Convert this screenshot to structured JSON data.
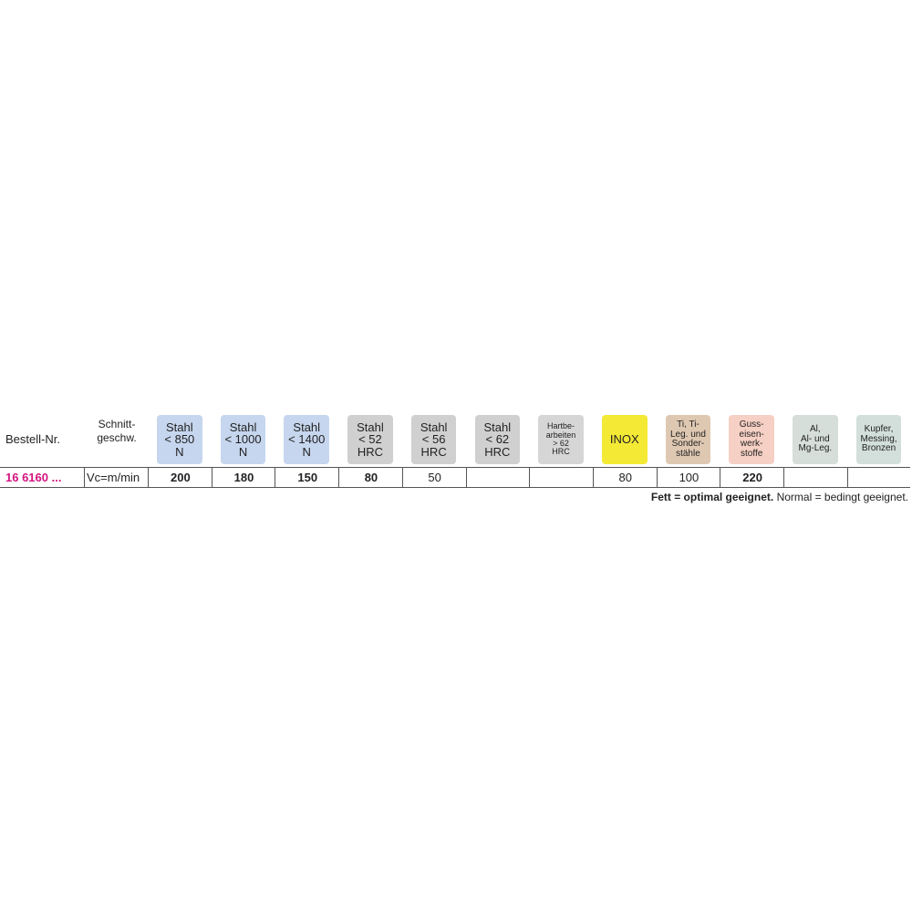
{
  "table": {
    "header": {
      "order_no": "Bestell-Nr.",
      "speed": [
        "Schnitt-",
        "geschw."
      ]
    },
    "materials": [
      {
        "lines": [
          "Stahl",
          "< 850",
          "N"
        ],
        "color": "#c6d6ee"
      },
      {
        "lines": [
          "Stahl",
          "< 1000",
          "N"
        ],
        "color": "#c6d6ee"
      },
      {
        "lines": [
          "Stahl",
          "< 1400",
          "N"
        ],
        "color": "#c6d6ee"
      },
      {
        "lines": [
          "Stahl",
          "< 52",
          "HRC"
        ],
        "color": "#d0d0d0"
      },
      {
        "lines": [
          "Stahl",
          "< 56",
          "HRC"
        ],
        "color": "#d0d0d0"
      },
      {
        "lines": [
          "Stahl",
          "< 62",
          "HRC"
        ],
        "color": "#d0d0d0"
      },
      {
        "lines": [
          "Hartbe-",
          "arbeiten",
          "> 62",
          "HRC"
        ],
        "color": "#d6d6d6"
      },
      {
        "lines": [
          "INOX"
        ],
        "color": "#f4e935"
      },
      {
        "lines": [
          "Ti, Ti-",
          "Leg. und",
          "Sonder-",
          "stähle"
        ],
        "color": "#dfc8b2"
      },
      {
        "lines": [
          "Guss-",
          "eisen-",
          "werk-",
          "stoffe"
        ],
        "color": "#f6d0c4"
      },
      {
        "lines": [
          "Al,",
          "Al- und",
          "Mg-Leg."
        ],
        "color": "#d5ded8"
      },
      {
        "lines": [
          "Kupfer,",
          "Messing,",
          "Bronzen"
        ],
        "color": "#d2dfda"
      }
    ],
    "row": {
      "order_no": "16 6160 ...",
      "unit": "Vc=m/min",
      "values": [
        200,
        180,
        150,
        80,
        50,
        null,
        null,
        80,
        100,
        220,
        null,
        null
      ],
      "bold": [
        true,
        true,
        true,
        true,
        false,
        false,
        false,
        false,
        false,
        true,
        false,
        false
      ]
    },
    "footer": {
      "bold": "Fett = optimal geeignet.",
      "normal": "Normal = bedingt geeignet."
    }
  }
}
